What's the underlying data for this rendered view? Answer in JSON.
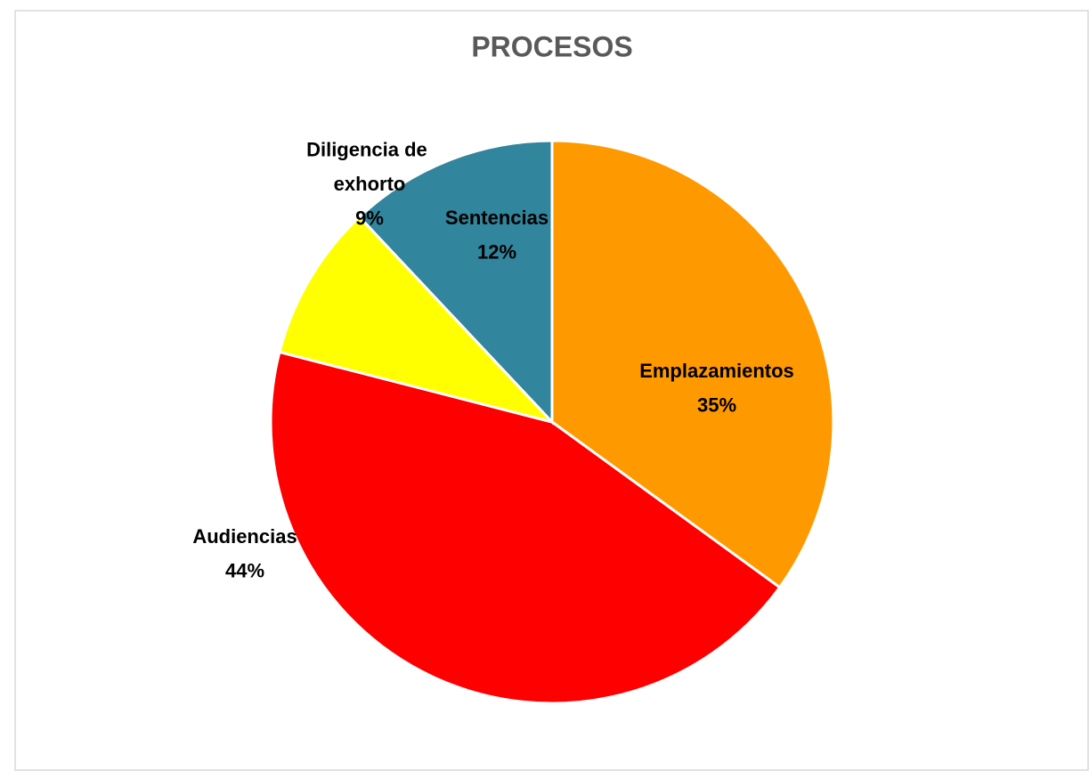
{
  "chart_data": {
    "type": "pie",
    "title": "PROCESOS",
    "categories": [
      "Emplazamientos",
      "Audiencias",
      "Diligencia de exhorto",
      "Sentencias"
    ],
    "values": [
      35,
      44,
      9,
      12
    ],
    "value_labels": [
      "35%",
      "44%",
      "9%",
      "12%"
    ],
    "colors": [
      "#ff9900",
      "#ff0000",
      "#ffff00",
      "#31859c"
    ]
  }
}
